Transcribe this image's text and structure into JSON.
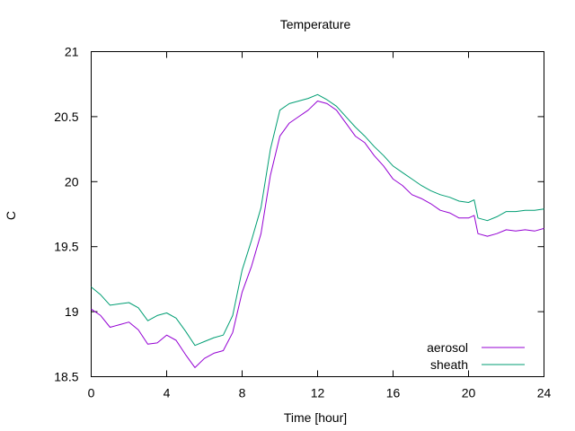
{
  "chart_data": {
    "type": "line",
    "title": "Temperature",
    "xlabel": "Time [hour]",
    "ylabel": "C",
    "xlim": [
      0,
      24
    ],
    "ylim": [
      18.5,
      21
    ],
    "xticks": [
      0,
      4,
      8,
      12,
      16,
      20,
      24
    ],
    "xtick_labels": [
      "0",
      "4",
      "8",
      "12",
      "16",
      "20",
      "24"
    ],
    "yticks": [
      18.5,
      19,
      19.5,
      20,
      20.5,
      21
    ],
    "ytick_labels": [
      "18.5",
      "19",
      "19.5",
      "20",
      "20.5",
      "21"
    ],
    "grid": false,
    "legend_position": "bottom-right",
    "series": [
      {
        "name": "aerosol",
        "color": "#9400d3",
        "x": [
          0,
          0.5,
          1,
          1.5,
          2,
          2.5,
          3,
          3.5,
          4,
          4.5,
          5,
          5.5,
          6,
          6.5,
          7,
          7.5,
          8,
          8.5,
          9,
          9.5,
          10,
          10.5,
          11,
          11.5,
          12,
          12.5,
          13,
          13.5,
          14,
          14.5,
          15,
          15.5,
          16,
          16.5,
          17,
          17.5,
          18,
          18.5,
          19,
          19.5,
          20,
          20.3,
          20.5,
          21,
          21.5,
          22,
          22.5,
          23,
          23.5,
          24
        ],
        "y": [
          19.02,
          18.97,
          18.88,
          18.9,
          18.92,
          18.86,
          18.75,
          18.76,
          18.82,
          18.78,
          18.67,
          18.57,
          18.64,
          18.68,
          18.7,
          18.84,
          19.15,
          19.35,
          19.6,
          20.05,
          20.35,
          20.45,
          20.5,
          20.55,
          20.62,
          20.6,
          20.55,
          20.45,
          20.35,
          20.3,
          20.2,
          20.12,
          20.02,
          19.97,
          19.9,
          19.87,
          19.83,
          19.78,
          19.76,
          19.72,
          19.72,
          19.74,
          19.6,
          19.58,
          19.6,
          19.63,
          19.62,
          19.63,
          19.62,
          19.64
        ]
      },
      {
        "name": "sheath",
        "color": "#009e73",
        "x": [
          0,
          0.5,
          1,
          1.5,
          2,
          2.5,
          3,
          3.5,
          4,
          4.5,
          5,
          5.5,
          6,
          6.5,
          7,
          7.5,
          8,
          8.5,
          9,
          9.5,
          10,
          10.5,
          11,
          11.5,
          12,
          12.5,
          13,
          13.5,
          14,
          14.5,
          15,
          15.5,
          16,
          16.5,
          17,
          17.5,
          18,
          18.5,
          19,
          19.5,
          20,
          20.3,
          20.5,
          21,
          21.5,
          22,
          22.5,
          23,
          23.5,
          24
        ],
        "y": [
          19.19,
          19.13,
          19.05,
          19.06,
          19.07,
          19.03,
          18.93,
          18.97,
          18.99,
          18.95,
          18.85,
          18.74,
          18.77,
          18.8,
          18.82,
          18.97,
          19.32,
          19.55,
          19.8,
          20.25,
          20.55,
          20.6,
          20.62,
          20.64,
          20.67,
          20.63,
          20.58,
          20.5,
          20.42,
          20.35,
          20.27,
          20.2,
          20.12,
          20.07,
          20.02,
          19.97,
          19.93,
          19.9,
          19.88,
          19.85,
          19.84,
          19.86,
          19.72,
          19.7,
          19.73,
          19.77,
          19.77,
          19.78,
          19.78,
          19.79
        ]
      }
    ]
  }
}
